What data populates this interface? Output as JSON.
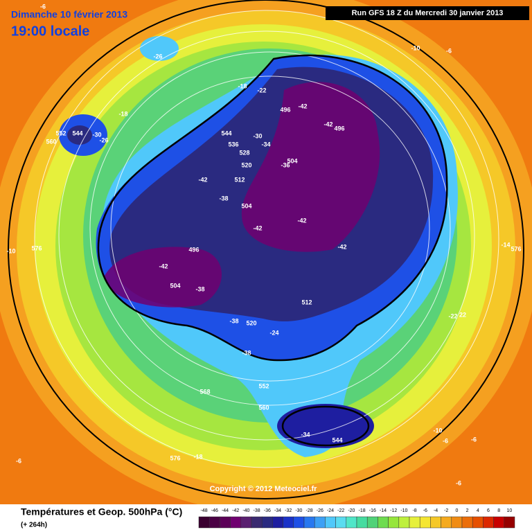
{
  "header": {
    "date": "Dimanche 10 février 2013",
    "time": "19:00 locale",
    "run": "Run GFS 18 Z du Mercredi 30 janvier 2013"
  },
  "copyright": "Copyright © 2012 Meteociel.fr",
  "legend": {
    "title": "Températures et Geop. 500hPa (°C)",
    "lead": "(+ 264h)",
    "labels": [
      -48,
      -46,
      -44,
      -42,
      -40,
      -38,
      -36,
      -34,
      -32,
      -30,
      -28,
      -26,
      -24,
      -22,
      -20,
      -18,
      -16,
      -14,
      -12,
      -10,
      -8,
      -6,
      -4,
      -2,
      0,
      2,
      4,
      6,
      8,
      10
    ],
    "colors": [
      "#3a0030",
      "#4a0044",
      "#5c0058",
      "#700070",
      "#5a2070",
      "#3a2a70",
      "#2a2a80",
      "#1e1ea0",
      "#1a32c8",
      "#1e50e6",
      "#2878f0",
      "#3ca0f5",
      "#50c8fa",
      "#5adcf0",
      "#50e6c8",
      "#46dca0",
      "#50d278",
      "#6edc50",
      "#96e63c",
      "#bef03c",
      "#e6f03c",
      "#f5e632",
      "#f5c828",
      "#f5aa1e",
      "#f08c14",
      "#eb6e0a",
      "#e65000",
      "#dc2800",
      "#c80000",
      "#960000"
    ]
  },
  "map_labels": [
    -6,
    -26,
    -10,
    -6,
    -18,
    -22,
    -18,
    552,
    544,
    -30,
    -26,
    560,
    496,
    -42,
    -42,
    496,
    544,
    -30,
    536,
    -34,
    528,
    504,
    -36,
    520,
    -42,
    512,
    -38,
    504,
    -42,
    -42,
    -10,
    576,
    496,
    -42,
    -14,
    576,
    -42,
    504,
    -38,
    512,
    -22,
    22,
    -38,
    520,
    -24,
    -38,
    552,
    568,
    560,
    -10,
    -34,
    544,
    -6,
    -6,
    576,
    -18,
    -6,
    -6
  ]
}
